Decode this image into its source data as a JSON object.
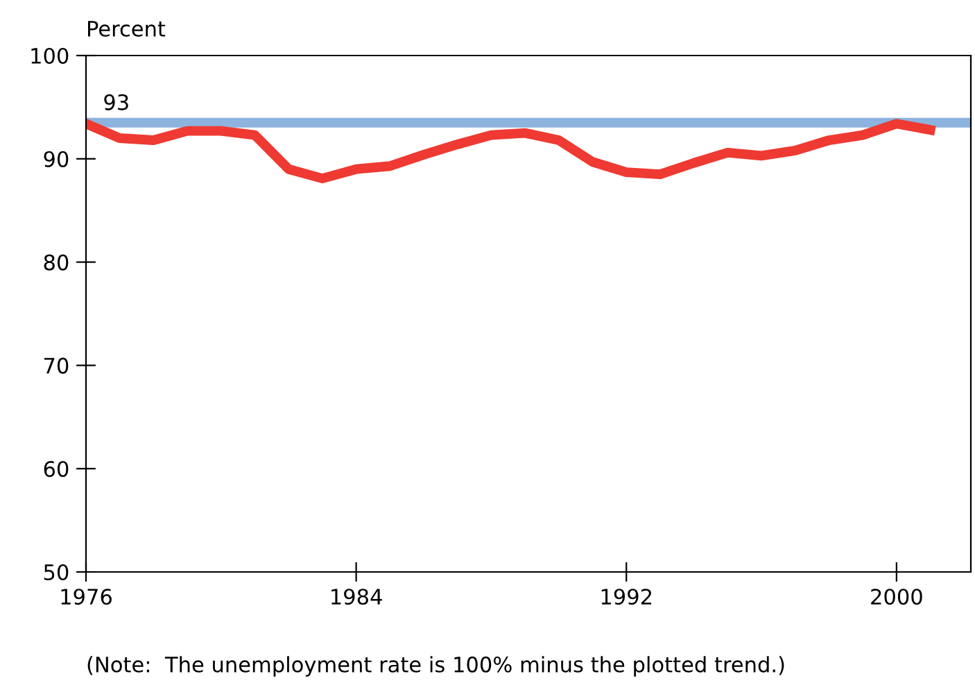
{
  "chart_data": {
    "type": "line",
    "ylabel": "Percent",
    "x": [
      1976,
      1977,
      1978,
      1979,
      1980,
      1981,
      1982,
      1983,
      1984,
      1985,
      1986,
      1987,
      1988,
      1989,
      1990,
      1991,
      1992,
      1993,
      1994,
      1995,
      1996,
      1997,
      1998,
      1999,
      2000,
      2001
    ],
    "series": [
      {
        "color": "#ee3a32",
        "values": [
          93.4,
          92.0,
          91.8,
          92.7,
          92.7,
          92.3,
          89.0,
          88.1,
          89.0,
          89.3,
          90.4,
          91.4,
          92.3,
          92.5,
          91.8,
          89.7,
          88.7,
          88.5,
          89.6,
          90.6,
          90.3,
          90.8,
          91.8,
          92.3,
          93.4,
          92.8
        ]
      }
    ],
    "xlim": [
      1976,
      2002.2
    ],
    "xticks": [
      1976,
      1984,
      1992,
      2000
    ],
    "ylim": [
      50,
      100
    ],
    "yticks": [
      50,
      60,
      70,
      80,
      90,
      100
    ],
    "ref_lines": [
      {
        "axis": "y",
        "value": 93.5,
        "label": "93",
        "color": "#8db3df"
      }
    ],
    "annotations": [
      "(Note:  The unemployment rate is 100% minus the plotted trend.)"
    ],
    "grid": false,
    "legend": false,
    "marker": "none",
    "line_style": "solid"
  }
}
